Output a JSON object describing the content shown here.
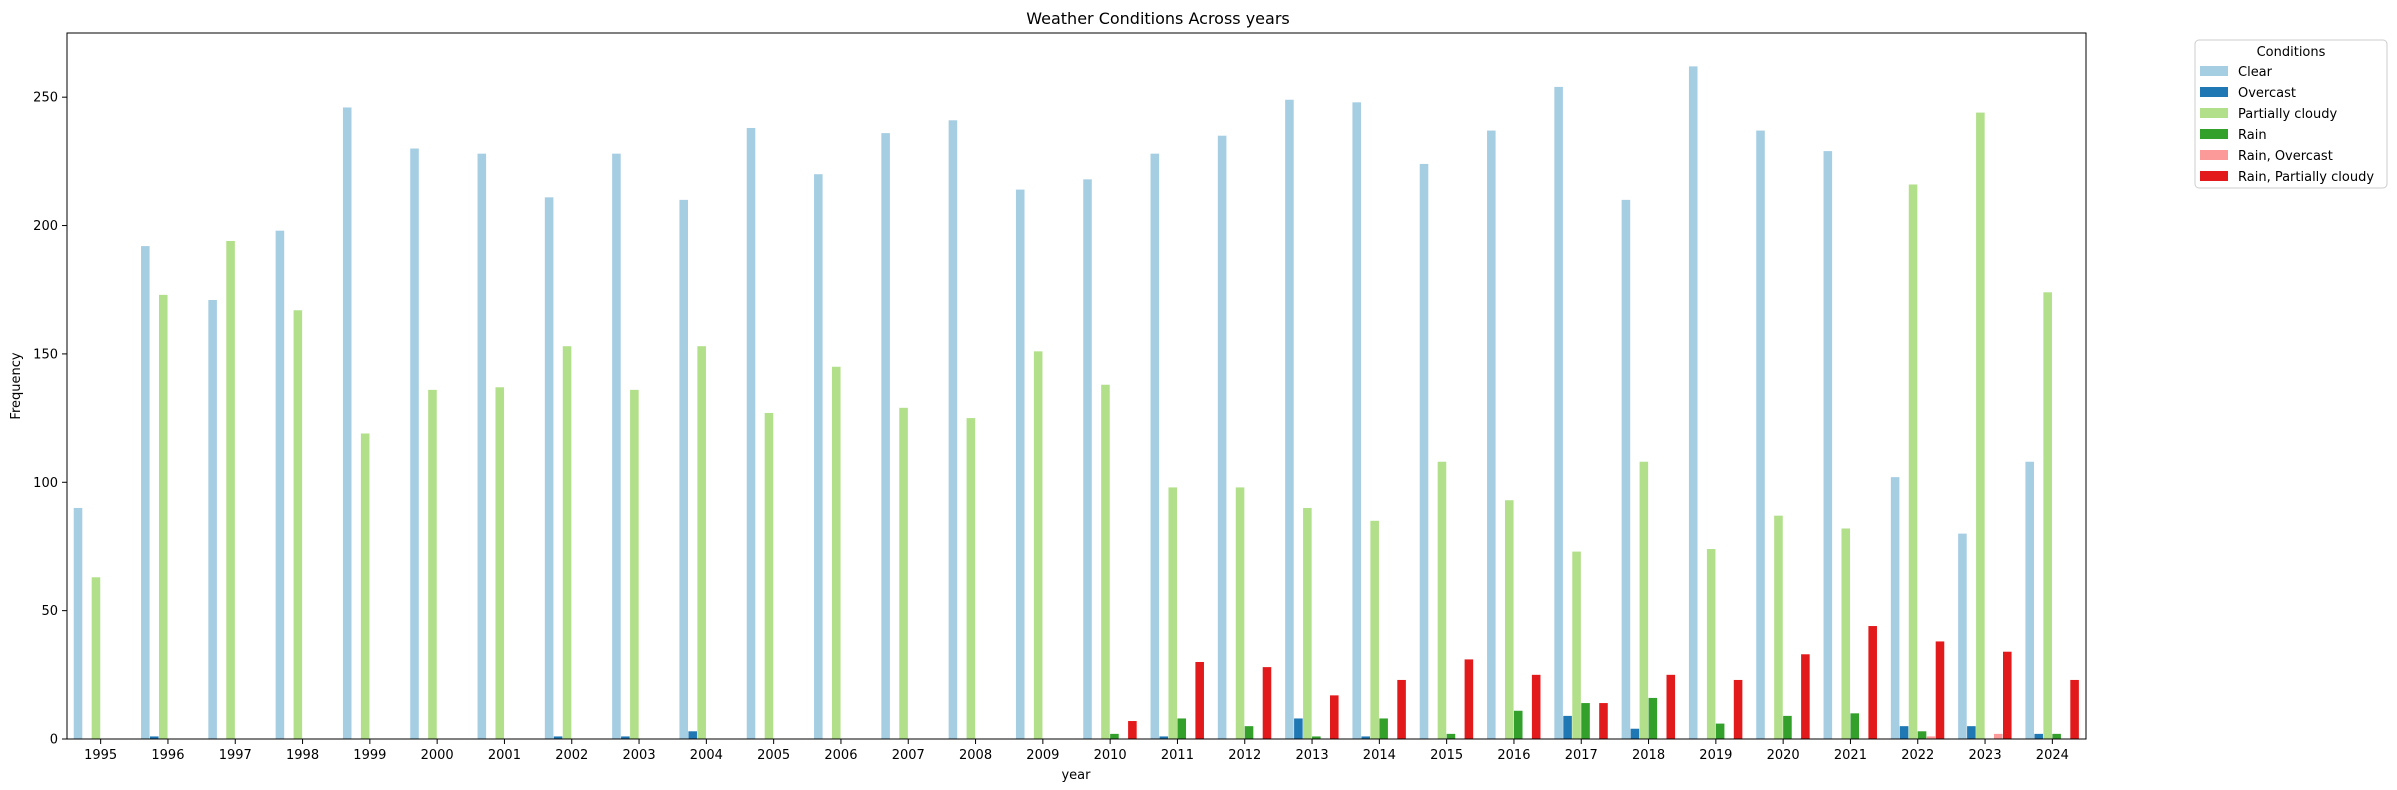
{
  "chart_data": {
    "type": "bar",
    "title": "Weather Conditions Across years",
    "xlabel": "year",
    "ylabel": "Frequency",
    "ylim": [
      0,
      275
    ],
    "yticks": [
      0,
      50,
      100,
      150,
      200,
      250
    ],
    "grid": false,
    "legend_title": "Conditions",
    "legend_position": "outside-top-right",
    "categories": [
      "1995",
      "1996",
      "1997",
      "1998",
      "1999",
      "2000",
      "2001",
      "2002",
      "2003",
      "2004",
      "2005",
      "2006",
      "2007",
      "2008",
      "2009",
      "2010",
      "2011",
      "2012",
      "2013",
      "2014",
      "2015",
      "2016",
      "2017",
      "2018",
      "2019",
      "2020",
      "2021",
      "2022",
      "2023",
      "2024"
    ],
    "series": [
      {
        "name": "Clear",
        "color": "#a6cee3",
        "values": [
          90,
          192,
          171,
          198,
          246,
          230,
          228,
          211,
          228,
          210,
          238,
          220,
          236,
          241,
          214,
          218,
          228,
          235,
          249,
          248,
          224,
          237,
          254,
          210,
          262,
          237,
          229,
          102,
          80,
          108
        ]
      },
      {
        "name": "Overcast",
        "color": "#1f78b4",
        "values": [
          0,
          1,
          0,
          0,
          0,
          0,
          0,
          1,
          1,
          3,
          0,
          0,
          0,
          0,
          0,
          0,
          1,
          0,
          8,
          1,
          0,
          0,
          9,
          4,
          0,
          0,
          0,
          5,
          5,
          2
        ]
      },
      {
        "name": "Partially cloudy",
        "color": "#b2df8a",
        "values": [
          63,
          173,
          194,
          167,
          119,
          136,
          137,
          153,
          136,
          153,
          127,
          145,
          129,
          125,
          151,
          138,
          98,
          98,
          90,
          85,
          108,
          93,
          73,
          108,
          74,
          87,
          82,
          216,
          244,
          174
        ]
      },
      {
        "name": "Rain",
        "color": "#33a02c",
        "values": [
          0,
          0,
          0,
          0,
          0,
          0,
          0,
          0,
          0,
          0,
          0,
          0,
          0,
          0,
          0,
          2,
          8,
          5,
          1,
          8,
          2,
          11,
          14,
          16,
          6,
          9,
          10,
          3,
          0,
          2
        ]
      },
      {
        "name": "Rain, Overcast",
        "color": "#fb9a99",
        "values": [
          0,
          0,
          0,
          0,
          0,
          0,
          0,
          0,
          0,
          0,
          0,
          0,
          0,
          0,
          0,
          0,
          0,
          0,
          0,
          0,
          0,
          0,
          0,
          0,
          0,
          0,
          0,
          1,
          2,
          0
        ]
      },
      {
        "name": "Rain, Partially cloudy",
        "color": "#e31a1c",
        "values": [
          0,
          0,
          0,
          0,
          0,
          0,
          0,
          0,
          0,
          0,
          0,
          0,
          0,
          0,
          0,
          7,
          30,
          28,
          17,
          23,
          31,
          25,
          14,
          25,
          23,
          33,
          44,
          38,
          34,
          23
        ]
      }
    ]
  }
}
